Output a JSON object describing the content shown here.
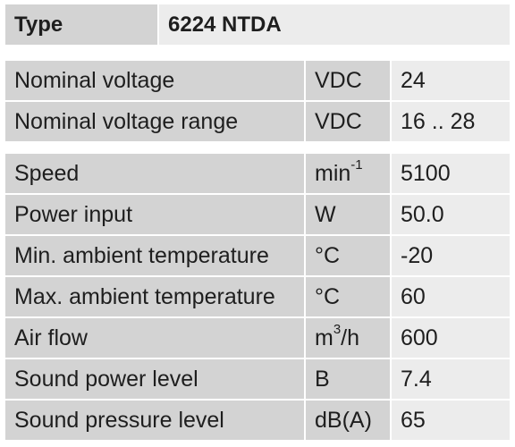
{
  "header": {
    "label": "Type",
    "value": "6224 NTDA"
  },
  "groups": [
    {
      "rows": [
        {
          "label": "Nominal voltage",
          "unit": {
            "base": "VDC"
          },
          "value": "24"
        },
        {
          "label": "Nominal voltage range",
          "unit": {
            "base": "VDC"
          },
          "value": "16 .. 28"
        }
      ]
    },
    {
      "rows": [
        {
          "label": "Speed",
          "unit": {
            "base": "min",
            "sup": "-1"
          },
          "value": "5100"
        },
        {
          "label": "Power input",
          "unit": {
            "base": "W"
          },
          "value": "50.0"
        },
        {
          "label": "Min. ambient temperature",
          "unit": {
            "base": "°C"
          },
          "value": "-20"
        },
        {
          "label": "Max. ambient temperature",
          "unit": {
            "base": "°C"
          },
          "value": "60"
        },
        {
          "label": "Air flow",
          "unit": {
            "base": "m",
            "sup": "3",
            "rest": "/h"
          },
          "value": "600"
        },
        {
          "label": "Sound power level",
          "unit": {
            "base": "B"
          },
          "value": "7.4"
        },
        {
          "label": "Sound pressure level",
          "unit": {
            "base": "dB(A)"
          },
          "value": "65"
        }
      ]
    }
  ]
}
